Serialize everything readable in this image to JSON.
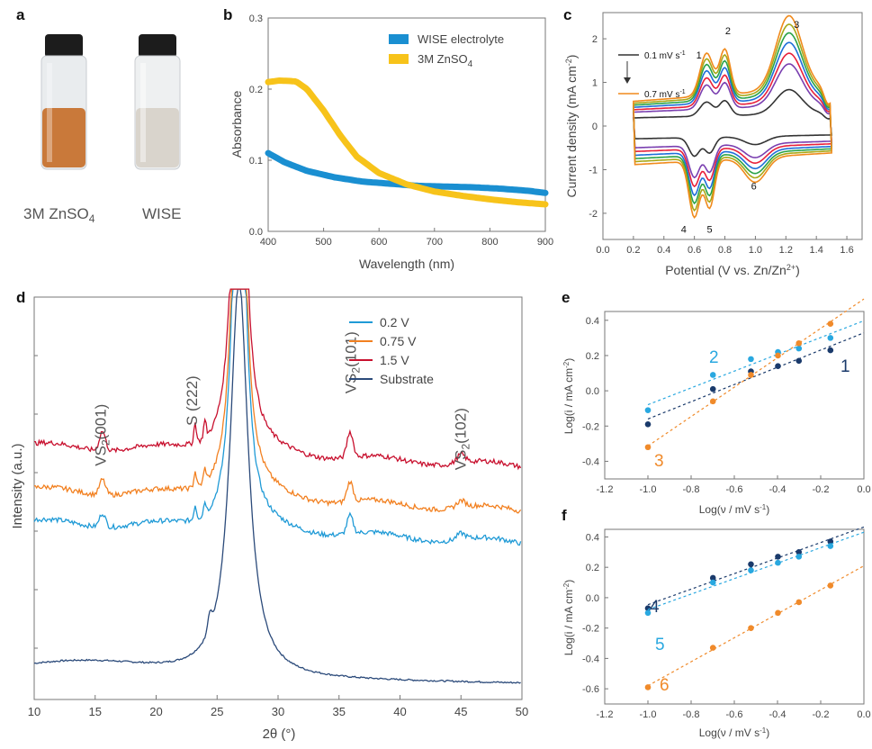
{
  "panels": {
    "a": {
      "letter": "a",
      "vials": [
        {
          "label": "3M ZnSO",
          "sub": "4",
          "liquid": "#c9793a"
        },
        {
          "label": "WISE",
          "sub": "",
          "liquid": "#d9d4cc"
        }
      ]
    },
    "b": {
      "letter": "b",
      "chart_data": {
        "type": "line",
        "xlabel": "Wavelength (nm)",
        "ylabel": "Absorbance",
        "xlim": [
          400,
          900
        ],
        "ylim": [
          0,
          0.3
        ],
        "xticks": [
          400,
          500,
          600,
          700,
          800,
          900
        ],
        "yticks": [
          0.0,
          0.1,
          0.2,
          0.3
        ],
        "legend_position": "top-right",
        "series": [
          {
            "name": "WISE electrolyte",
            "color": "#1a8fd1",
            "x": [
              400,
              430,
              470,
              520,
              570,
              620,
              670,
              720,
              770,
              820,
              870,
              900
            ],
            "y": [
              0.11,
              0.097,
              0.085,
              0.076,
              0.07,
              0.067,
              0.064,
              0.063,
              0.062,
              0.06,
              0.057,
              0.054
            ]
          },
          {
            "name": "3M ZnSO",
            "name_sub": "4",
            "color": "#f7c31a",
            "x": [
              400,
              420,
              450,
              470,
              500,
              530,
              560,
              600,
              650,
              700,
              750,
              800,
              850,
              900
            ],
            "y": [
              0.21,
              0.212,
              0.211,
              0.2,
              0.17,
              0.135,
              0.105,
              0.082,
              0.066,
              0.056,
              0.05,
              0.045,
              0.041,
              0.038
            ]
          }
        ]
      }
    },
    "c": {
      "letter": "c",
      "chart_data": {
        "type": "line",
        "xlabel": "Potential (V vs. Zn/Zn",
        "xlabel_sup": "2+",
        "xlabel_end": ")",
        "ylabel": "Current density (mA cm",
        "ylabel_sup": "-2",
        "ylabel_end": ")",
        "xlim": [
          0.0,
          1.7
        ],
        "ylim": [
          -2.6,
          2.6
        ],
        "xticks": [
          0.0,
          0.2,
          0.4,
          0.6,
          0.8,
          1.0,
          1.2,
          1.4,
          1.6
        ],
        "yticks": [
          -2,
          -1,
          0,
          1,
          2
        ],
        "annotation_low": "0.1 mV s",
        "annotation_high": "0.7 mV s",
        "annotation_sup": "-1",
        "peaks": [
          {
            "label": "1",
            "x": 0.63,
            "y": 1.55
          },
          {
            "label": "2",
            "x": 0.82,
            "y": 2.1
          },
          {
            "label": "3",
            "x": 1.27,
            "y": 2.25
          },
          {
            "label": "4",
            "x": 0.53,
            "y": -2.45
          },
          {
            "label": "5",
            "x": 0.7,
            "y": -2.45
          },
          {
            "label": "6",
            "x": 0.99,
            "y": -1.45
          }
        ],
        "series": [
          {
            "scale": 0.34,
            "color": "#333333"
          },
          {
            "scale": 0.58,
            "color": "#7a3fb0"
          },
          {
            "scale": 0.68,
            "color": "#e8203a"
          },
          {
            "scale": 0.78,
            "color": "#1e6fd9"
          },
          {
            "scale": 0.87,
            "color": "#2aa348"
          },
          {
            "scale": 0.95,
            "color": "#a8a818"
          },
          {
            "scale": 1.03,
            "color": "#f08a1c"
          }
        ]
      }
    },
    "d": {
      "letter": "d",
      "chart_data": {
        "type": "line",
        "xlabel": "2θ (°)",
        "ylabel": "Intensity (a.u.)",
        "xlim": [
          10,
          50
        ],
        "xticks": [
          10,
          15,
          20,
          25,
          30,
          35,
          40,
          45,
          50
        ],
        "legend_position": "top-right",
        "annotations": [
          {
            "text": "VS",
            "sub": "2",
            "end": "(001)",
            "x": 15.5
          },
          {
            "text": "S (222)",
            "sub": "",
            "end": "",
            "x": 23.0
          },
          {
            "text": "VS",
            "sub": "2",
            "end": "(101)",
            "x": 36.0
          },
          {
            "text": "VS",
            "sub": "2",
            "end": "(102)",
            "x": 45.0
          }
        ],
        "series": [
          {
            "name": "0.2 V",
            "color": "#1f9ad6",
            "offset": 0.44,
            "amp": 0.5
          },
          {
            "name": "0.75 V",
            "color": "#f28020",
            "offset": 0.52,
            "amp": 0.55
          },
          {
            "name": "1.5 V",
            "color": "#c8102e",
            "offset": 0.63,
            "amp": 0.7
          },
          {
            "name": "Substrate",
            "color": "#2b4a7a",
            "offset": 0.06,
            "amp": 0.3
          }
        ]
      }
    },
    "e": {
      "letter": "e",
      "chart_data": {
        "type": "scatter",
        "xlabel": "Log(ν / mV s",
        "xlabel_sup": "-1",
        "xlabel_end": ")",
        "ylabel": "Log(i / mA cm",
        "ylabel_sup": "-2",
        "ylabel_end": ")",
        "xlim": [
          -1.2,
          0.0
        ],
        "ylim": [
          -0.5,
          0.45
        ],
        "xticks": [
          -1.2,
          -1.0,
          -0.8,
          -0.6,
          -0.4,
          -0.2,
          0.0
        ],
        "yticks": [
          -0.4,
          -0.2,
          0.0,
          0.2,
          0.4
        ],
        "x": [
          -1.0,
          -0.699,
          -0.523,
          -0.398,
          -0.301,
          -0.155
        ],
        "series": [
          {
            "name": "1",
            "color": "#1a3a6b",
            "y": [
              -0.19,
              0.01,
              0.11,
              0.14,
              0.17,
              0.23
            ]
          },
          {
            "name": "2",
            "color": "#29a8e0",
            "y": [
              -0.11,
              0.09,
              0.18,
              0.22,
              0.24,
              0.3
            ]
          },
          {
            "name": "3",
            "color": "#f08a2a",
            "y": [
              -0.32,
              -0.06,
              0.09,
              0.2,
              0.27,
              0.38
            ]
          }
        ]
      }
    },
    "f": {
      "letter": "f",
      "chart_data": {
        "type": "scatter",
        "xlabel": "Log(ν / mV s",
        "xlabel_sup": "-1",
        "xlabel_end": ")",
        "ylabel": "Log(i / mA cm",
        "ylabel_sup": "-2",
        "ylabel_end": ")",
        "xlim": [
          -1.2,
          0.0
        ],
        "ylim": [
          -0.7,
          0.45
        ],
        "xticks": [
          -1.2,
          -1.0,
          -0.8,
          -0.6,
          -0.4,
          -0.2,
          0.0
        ],
        "yticks": [
          -0.6,
          -0.4,
          -0.2,
          0.0,
          0.2,
          0.4
        ],
        "x": [
          -1.0,
          -0.699,
          -0.523,
          -0.398,
          -0.301,
          -0.155
        ],
        "series": [
          {
            "name": "4",
            "color": "#1a3a6b",
            "y": [
              -0.07,
              0.13,
              0.22,
              0.27,
              0.3,
              0.37
            ]
          },
          {
            "name": "5",
            "color": "#29a8e0",
            "y": [
              -0.1,
              0.1,
              0.18,
              0.23,
              0.27,
              0.34
            ]
          },
          {
            "name": "6",
            "color": "#f08a2a",
            "y": [
              -0.59,
              -0.33,
              -0.2,
              -0.1,
              -0.03,
              0.08
            ]
          }
        ]
      }
    }
  }
}
